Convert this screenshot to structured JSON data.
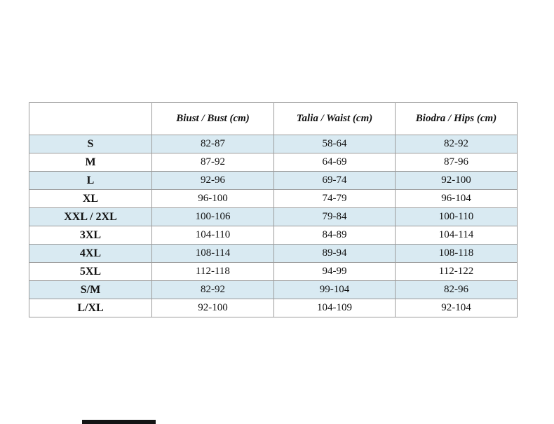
{
  "colors": {
    "stripe": "#d9eaf2",
    "border": "#9b9b9b",
    "background": "#ffffff"
  },
  "chart_data": {
    "type": "table",
    "columns": [
      "",
      "Biust / Bust (cm)",
      "Talia / Waist (cm)",
      "Biodra / Hips (cm)"
    ],
    "rows": [
      [
        "S",
        "82-87",
        "58-64",
        "82-92"
      ],
      [
        "M",
        "87-92",
        "64-69",
        "87-96"
      ],
      [
        "L",
        "92-96",
        "69-74",
        "92-100"
      ],
      [
        "XL",
        "96-100",
        "74-79",
        "96-104"
      ],
      [
        "XXL / 2XL",
        "100-106",
        "79-84",
        "100-110"
      ],
      [
        "3XL",
        "104-110",
        "84-89",
        "104-114"
      ],
      [
        "4XL",
        "108-114",
        "89-94",
        "108-118"
      ],
      [
        "5XL",
        "112-118",
        "94-99",
        "112-122"
      ],
      [
        "S/M",
        "82-92",
        "99-104",
        "82-96"
      ],
      [
        "L/XL",
        "92-100",
        "104-109",
        "92-104"
      ]
    ]
  }
}
